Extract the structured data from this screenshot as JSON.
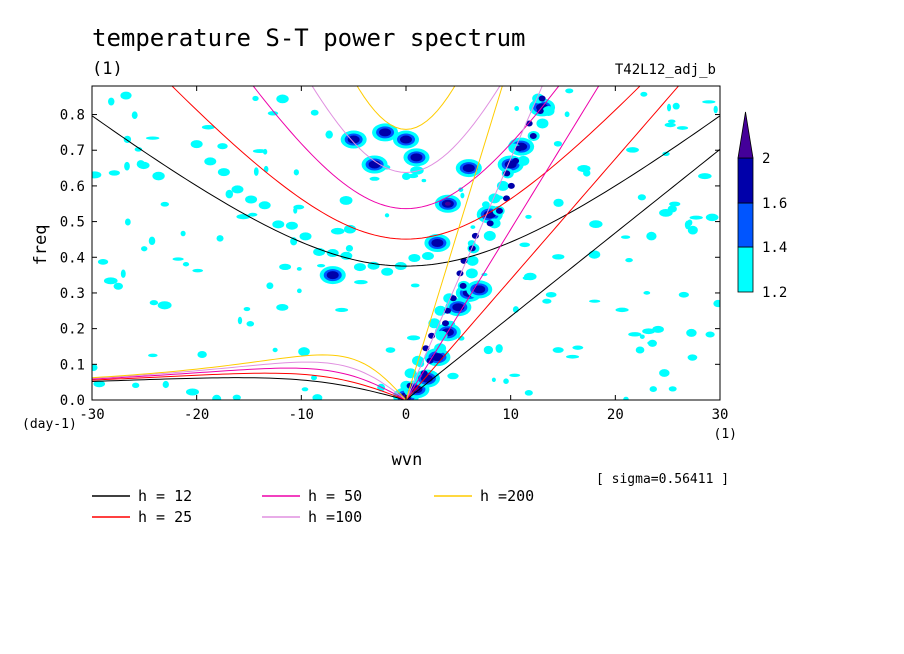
{
  "chart_data": {
    "type": "contour",
    "title": "temperature S-T power spectrum",
    "subtitle": "(1)",
    "run_label": "T42L12_adj_b",
    "xlabel": "wvn",
    "ylabel": "freq",
    "x_unit": "(1)",
    "y_unit": "(day-1)",
    "xlim": [
      -30,
      30
    ],
    "ylim": [
      0,
      0.88
    ],
    "x_ticks": [
      -30,
      -20,
      -10,
      0,
      10,
      20,
      30
    ],
    "x_tick_labels": [
      "-30",
      "-20",
      "-10",
      "0",
      "10",
      "20",
      "30"
    ],
    "y_ticks": [
      0,
      0.1,
      0.2,
      0.3,
      0.4,
      0.5,
      0.6,
      0.7,
      0.8
    ],
    "y_tick_labels": [
      "0.0",
      "0.1",
      "0.2",
      "0.3",
      "0.4",
      "0.5",
      "0.6",
      "0.7",
      "0.8"
    ],
    "sigma_note": "[ sigma=0.56411 ]",
    "colorbar": {
      "levels": [
        1.2,
        1.4,
        1.6,
        2
      ],
      "labels": [
        "1.2",
        "1.4",
        "1.6",
        "2"
      ],
      "colors": [
        "#00ffff",
        "#0055ff",
        "#0000aa",
        "#440099"
      ]
    },
    "dispersion_curves": [
      {
        "name": "h = 12",
        "h": 12,
        "color": "#000000"
      },
      {
        "name": "h = 25",
        "h": 25,
        "color": "#ff0000"
      },
      {
        "name": "h = 50",
        "h": 50,
        "color": "#ee00aa"
      },
      {
        "name": "h =100",
        "h": 100,
        "color": "#e090e0"
      },
      {
        "name": "h =200",
        "h": 200,
        "color": "#ffcc00"
      }
    ],
    "high_power_regions": [
      {
        "wvn": 0,
        "freq": 0.01,
        "level": 2
      },
      {
        "wvn": 1,
        "freq": 0.03,
        "level": 2
      },
      {
        "wvn": 2,
        "freq": 0.06,
        "level": 1.6
      },
      {
        "wvn": 3,
        "freq": 0.12,
        "level": 1.6
      },
      {
        "wvn": 4,
        "freq": 0.19,
        "level": 1.6
      },
      {
        "wvn": 5,
        "freq": 0.26,
        "level": 1.6
      },
      {
        "wvn": 6,
        "freq": 0.3,
        "level": 1.6
      },
      {
        "wvn": 7,
        "freq": 0.31,
        "level": 1.6
      },
      {
        "wvn": 3,
        "freq": 0.44,
        "level": 1.6
      },
      {
        "wvn": 4,
        "freq": 0.55,
        "level": 2
      },
      {
        "wvn": 6,
        "freq": 0.65,
        "level": 1.6
      },
      {
        "wvn": 8,
        "freq": 0.52,
        "level": 1.6
      },
      {
        "wvn": 10,
        "freq": 0.66,
        "level": 1.6
      },
      {
        "wvn": 11,
        "freq": 0.71,
        "level": 1.6
      },
      {
        "wvn": 13,
        "freq": 0.82,
        "level": 1.6
      },
      {
        "wvn": -2,
        "freq": 0.75,
        "level": 1.6
      },
      {
        "wvn": -5,
        "freq": 0.73,
        "level": 1.6
      },
      {
        "wvn": -3,
        "freq": 0.66,
        "level": 1.6
      },
      {
        "wvn": -7,
        "freq": 0.35,
        "level": 1.6
      },
      {
        "wvn": 0,
        "freq": 0.73,
        "level": 1.6
      },
      {
        "wvn": 1,
        "freq": 0.68,
        "level": 1.6
      }
    ]
  }
}
